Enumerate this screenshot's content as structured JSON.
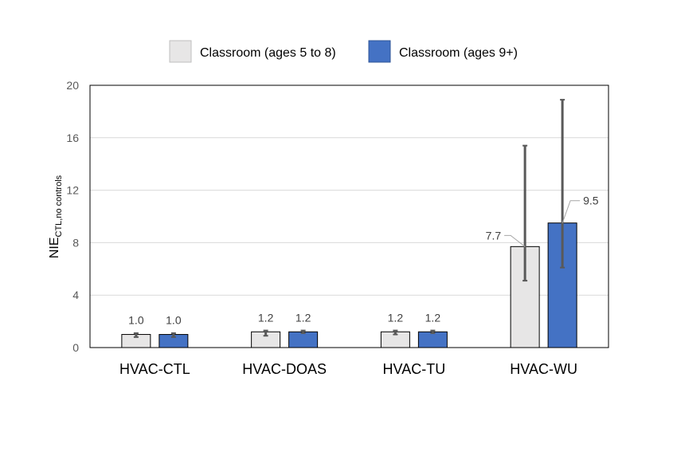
{
  "chart_data": {
    "type": "bar",
    "categories": [
      "HVAC-CTL",
      "HVAC-DOAS",
      "HVAC-TU",
      "HVAC-WU"
    ],
    "series": [
      {
        "name": "Classroom (ages 5 to 8)",
        "color": "#e7e6e6",
        "values": [
          1.0,
          1.2,
          1.2,
          7.7
        ],
        "value_labels": [
          "1.0",
          "1.2",
          "1.2",
          "7.7"
        ],
        "error_low": [
          0.8,
          0.9,
          1.0,
          5.1
        ],
        "error_high": [
          1.1,
          1.3,
          1.3,
          15.4
        ]
      },
      {
        "name": "Classroom (ages 9+)",
        "color": "#4472c4",
        "values": [
          1.0,
          1.2,
          1.2,
          9.5
        ],
        "value_labels": [
          "1.0",
          "1.2",
          "1.2",
          "9.5"
        ],
        "error_low": [
          0.8,
          1.1,
          1.1,
          6.1
        ],
        "error_high": [
          1.1,
          1.3,
          1.3,
          18.9
        ]
      }
    ],
    "ylabel_main": "NIE",
    "ylabel_sub": "CTL,no controls",
    "ylim": [
      0,
      20
    ],
    "yticks": [
      "0",
      "4",
      "8",
      "12",
      "16",
      "20"
    ],
    "grid": true,
    "legend_position": "top"
  }
}
